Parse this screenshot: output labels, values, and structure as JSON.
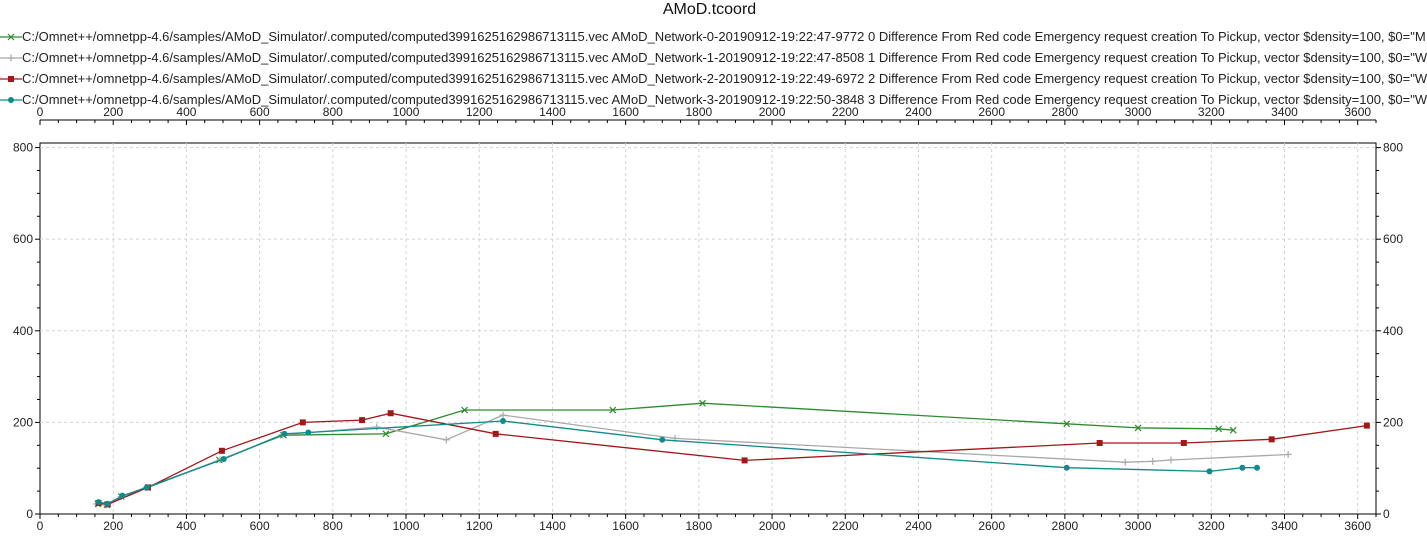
{
  "window": {
    "title": "AMoD.tcoord"
  },
  "chart_data": {
    "type": "line",
    "title": "AMoD.tcoord",
    "xlabel": "",
    "ylabel": "",
    "xlim": [
      0,
      3650
    ],
    "ylim": [
      0,
      810
    ],
    "x_ticks": [
      0,
      200,
      400,
      600,
      800,
      1000,
      1200,
      1400,
      1600,
      1800,
      2000,
      2200,
      2400,
      2600,
      2800,
      3000,
      3200,
      3400,
      3600
    ],
    "y_ticks": [
      0,
      200,
      400,
      600,
      800
    ],
    "x_tick_labels": [
      "0",
      "200",
      "400",
      "600",
      "800",
      "1000",
      "1200",
      "1400",
      "1600",
      "1800",
      "2000",
      "2200",
      "2400",
      "2600",
      "2800",
      "3000",
      "3200",
      "3400",
      "3600"
    ],
    "y_tick_labels": [
      "0",
      "200",
      "400",
      "600",
      "800"
    ],
    "grid": true,
    "legend_position": "top",
    "series": [
      {
        "name": "C:/Omnet++/omnetpp-4.6/samples/AMoD_Simulator/.computed/computed3991625162986713115.vec AMoD_Network-0-20190912-19:22:47-9772 0 Difference From Red code Emergency request creation To Pickup, vector $density=100, $0=\"M",
        "color": "#2e8b2e",
        "marker": "x",
        "points": [
          [
            158,
            22
          ],
          [
            183,
            20
          ],
          [
            222,
            38
          ],
          [
            295,
            58
          ],
          [
            490,
            118
          ],
          [
            665,
            172
          ],
          [
            945,
            175
          ],
          [
            1160,
            227
          ],
          [
            1565,
            227
          ],
          [
            1810,
            242
          ],
          [
            2805,
            197
          ],
          [
            3000,
            188
          ],
          [
            3220,
            186
          ],
          [
            3260,
            183
          ]
        ]
      },
      {
        "name": "C:/Omnet++/omnetpp-4.6/samples/AMoD_Simulator/.computed/computed3991625162986713115.vec AMoD_Network-1-20190912-19:22:47-8508 1 Difference From Red code Emergency request creation To Pickup, vector $density=100, $0=\"W",
        "color": "#a9a9a9",
        "marker": "+",
        "points": [
          [
            155,
            22
          ],
          [
            180,
            20
          ],
          [
            222,
            38
          ],
          [
            290,
            58
          ],
          [
            492,
            118
          ],
          [
            662,
            173
          ],
          [
            920,
            190
          ],
          [
            1110,
            162
          ],
          [
            1265,
            216
          ],
          [
            1735,
            165
          ],
          [
            2965,
            113
          ],
          [
            3040,
            115
          ],
          [
            3090,
            118
          ],
          [
            3410,
            130
          ]
        ]
      },
      {
        "name": "C:/Omnet++/omnetpp-4.6/samples/AMoD_Simulator/.computed/computed3991625162986713115.vec AMoD_Network-2-20190912-19:22:49-6972 2 Difference From Red code Emergency request creation To Pickup, vector $density=100, $0=\"W",
        "color": "#a01818",
        "marker": "square",
        "points": [
          [
            160,
            24
          ],
          [
            185,
            21
          ],
          [
            295,
            58
          ],
          [
            497,
            138
          ],
          [
            718,
            200
          ],
          [
            880,
            205
          ],
          [
            958,
            220
          ],
          [
            1245,
            175
          ],
          [
            1925,
            117
          ],
          [
            2895,
            155
          ],
          [
            3125,
            155
          ],
          [
            3365,
            163
          ],
          [
            3625,
            193
          ]
        ]
      },
      {
        "name": "C:/Omnet++/omnetpp-4.6/samples/AMoD_Simulator/.computed/computed3991625162986713115.vec AMoD_Network-3-20190912-19:22:50-3848 3 Difference From Red code Emergency request creation To Pickup, vector $density=100, $0=\"W",
        "color": "#0f8b8b",
        "marker": "circle",
        "points": [
          [
            160,
            26
          ],
          [
            184,
            22
          ],
          [
            225,
            40
          ],
          [
            292,
            58
          ],
          [
            502,
            120
          ],
          [
            668,
            175
          ],
          [
            733,
            178
          ],
          [
            1265,
            203
          ],
          [
            1700,
            162
          ],
          [
            2805,
            101
          ],
          [
            3195,
            93
          ],
          [
            3285,
            101
          ],
          [
            3325,
            101
          ]
        ]
      }
    ]
  }
}
